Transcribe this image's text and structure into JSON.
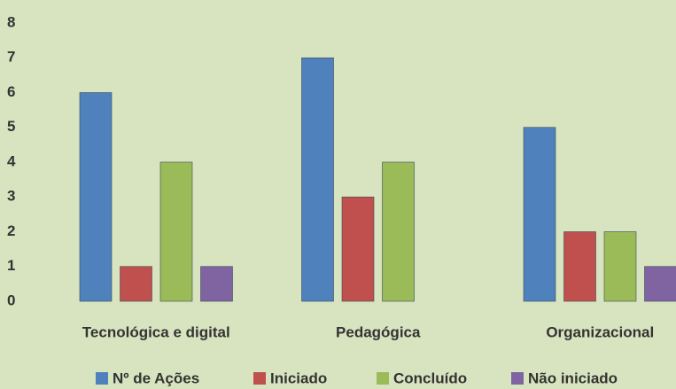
{
  "chart_data": {
    "type": "bar",
    "categories": [
      "Tecnológica e digital",
      "Pedagógica",
      "Organizacional"
    ],
    "series": [
      {
        "name": "Nº de Ações",
        "color": "#4f81bd",
        "values": [
          6,
          7,
          5
        ]
      },
      {
        "name": "Iniciado",
        "color": "#c0504d",
        "values": [
          1,
          3,
          2
        ]
      },
      {
        "name": "Concluído",
        "color": "#9bbb59",
        "values": [
          4,
          4,
          2
        ]
      },
      {
        "name": "Não iniciado",
        "color": "#8064a2",
        "values": [
          1,
          0,
          1
        ]
      }
    ],
    "ylim": [
      0,
      8
    ],
    "yticks": [
      0,
      1,
      2,
      3,
      4,
      5,
      6,
      7,
      8
    ],
    "grid": false,
    "legend": "bottom"
  }
}
